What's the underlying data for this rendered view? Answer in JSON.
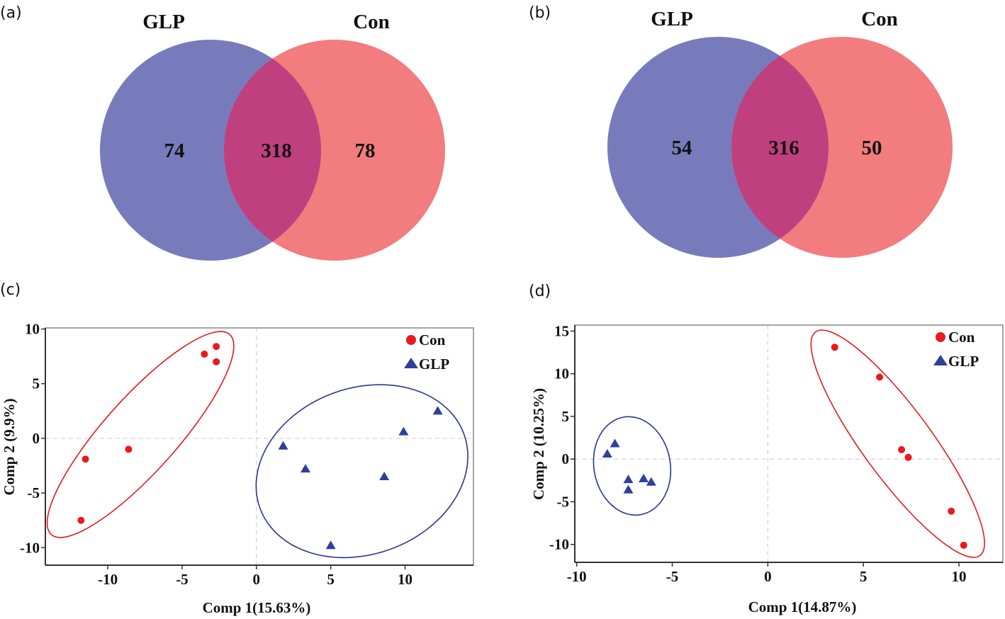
{
  "colors": {
    "glp_venn": "#787bbb",
    "con_venn": "#f27c7e",
    "overlap_venn": "#c03f7f",
    "con_point": "#e8191f",
    "glp_point": "#2e3f9c",
    "con_ellipse": "#e41a1c",
    "glp_ellipse": "#2b3593"
  },
  "chart_data": [
    {
      "panel": "(a)",
      "type": "venn",
      "sets": [
        "GLP",
        "Con"
      ],
      "values": {
        "GLP_only": "74",
        "both": "318",
        "Con_only": "78"
      }
    },
    {
      "panel": "(b)",
      "type": "venn",
      "sets": [
        "GLP",
        "Con"
      ],
      "values": {
        "GLP_only": "54",
        "both": "316",
        "Con_only": "50"
      }
    },
    {
      "panel": "(c)",
      "type": "scatter",
      "xlabel": "Comp 1(15.63%)",
      "ylabel": "Comp 2 (9.9%)",
      "xlim": [
        -14.2,
        14.6
      ],
      "ylim": [
        -11.6,
        10.1
      ],
      "xticks": [
        -10,
        -5,
        0,
        5,
        10
      ],
      "yticks": [
        10,
        5,
        0,
        -5,
        -10
      ],
      "grid": "dashed lines at x=0 and y=0",
      "legend": {
        "position": "top-right",
        "entries": [
          "Con",
          "GLP"
        ]
      },
      "series": [
        {
          "name": "Con",
          "marker": "circle",
          "points": [
            [
              -3.5,
              7.7
            ],
            [
              -2.7,
              8.4
            ],
            [
              -2.7,
              7.0
            ],
            [
              -8.6,
              -1.0
            ],
            [
              -11.5,
              -1.9
            ],
            [
              -11.8,
              -7.5
            ]
          ],
          "ellipse": {
            "cx": -7.7,
            "cy": 0.3,
            "major_end1": [
              -1.8,
              9.5
            ],
            "major_end2": [
              -13.8,
              -8.8
            ],
            "minor_semi": 2.6
          }
        },
        {
          "name": "GLP",
          "marker": "triangle",
          "points": [
            [
              1.8,
              -0.7
            ],
            [
              3.3,
              -2.8
            ],
            [
              5.0,
              -9.8
            ],
            [
              8.6,
              -3.5
            ],
            [
              9.9,
              0.6
            ],
            [
              12.2,
              2.5
            ]
          ],
          "ellipse": {
            "cx": 7.1,
            "cy": -3.0,
            "rx": 7.3,
            "ry": 7.6,
            "rotation_deg": -20
          }
        }
      ]
    },
    {
      "panel": "(d)",
      "type": "scatter",
      "xlabel": "Comp 1(14.87%)",
      "ylabel": "Comp 2 (10.25%)",
      "xlim": [
        -10.1,
        12.3
      ],
      "ylim": [
        -12.1,
        15.7
      ],
      "xticks": [
        -10,
        -5,
        0,
        5,
        10
      ],
      "yticks": [
        15,
        10,
        5,
        0,
        -5,
        -10
      ],
      "grid": "dashed lines at x=0 and y=0",
      "legend": {
        "position": "top-right",
        "entries": [
          "Con",
          "GLP"
        ]
      },
      "series": [
        {
          "name": "Con",
          "marker": "circle",
          "points": [
            [
              3.5,
              13.1
            ],
            [
              5.85,
              9.6
            ],
            [
              7.0,
              1.1
            ],
            [
              7.35,
              0.2
            ],
            [
              9.6,
              -6.1
            ],
            [
              10.25,
              -10.1
            ]
          ],
          "ellipse": {
            "cx": 7.0,
            "cy": 1.6,
            "major_end1": [
              2.5,
              14.9
            ],
            "major_end2": [
              11.1,
              -11.3
            ],
            "minor_semi": 1.9
          }
        },
        {
          "name": "GLP",
          "marker": "triangle",
          "points": [
            [
              -8.4,
              0.6
            ],
            [
              -8.0,
              1.8
            ],
            [
              -7.3,
              -2.4
            ],
            [
              -7.3,
              -3.6
            ],
            [
              -6.5,
              -2.3
            ],
            [
              -6.1,
              -2.7
            ]
          ],
          "ellipse": {
            "cx": -7.1,
            "cy": -0.8,
            "rx": 2.0,
            "ry": 5.8,
            "rotation_deg": -10
          }
        }
      ]
    }
  ]
}
